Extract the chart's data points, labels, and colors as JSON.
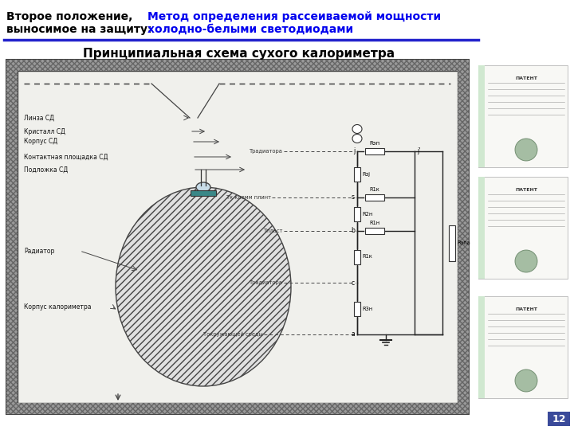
{
  "title_left1": "Второе положение,",
  "title_left2": "выносимое на защиту:",
  "title_right1": "Метод определения рассеиваемой мощности",
  "title_right2": "холодно-белыми светодиодами",
  "subtitle": "Принципиальная схема сухого калориметра",
  "slide_number": "12",
  "bg_color": "#ffffff",
  "header_line_color": "#2222cc",
  "title_color_left": "#000000",
  "title_color_right": "#0000ee",
  "subtitle_color": "#000000"
}
